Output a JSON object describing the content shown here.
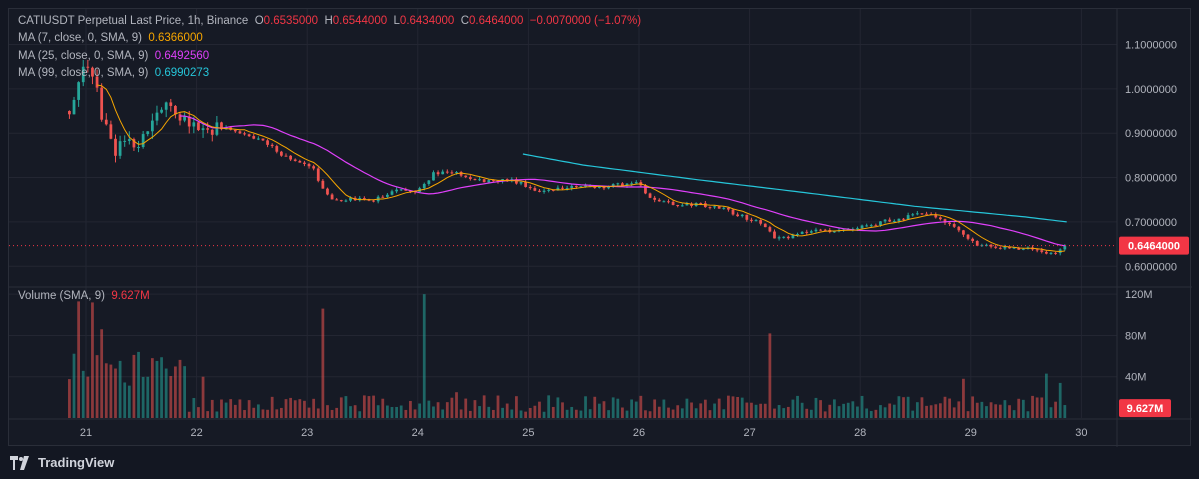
{
  "header": {
    "symbol_line": "CATIUSDT Perpetual Last Price, 1h, Binance",
    "open_label": "O",
    "open": "0.6535000",
    "high_label": "H",
    "high": "0.6544000",
    "low_label": "L",
    "low": "0.6434000",
    "close_label": "C",
    "close": "0.6464000",
    "change": "−0.0070000 (−1.07%)"
  },
  "indicators": {
    "ma7_label": "MA (7, close, 0, SMA, 9)",
    "ma7_value": "0.6366000",
    "ma25_label": "MA (25, close, 0, SMA, 9)",
    "ma25_value": "0.6492560",
    "ma99_label": "MA (99, close, 0, SMA, 9)",
    "ma99_value": "0.6990273",
    "volume_label": "Volume (SMA, 9)",
    "volume_value": "9.627M"
  },
  "colors": {
    "up": "#26a69a",
    "down": "#ef5350",
    "ma7": "#f7a600",
    "ma25": "#e040fb",
    "ma99": "#26c6da",
    "price_tag": "#f23645"
  },
  "brand": {
    "name": "TradingView"
  },
  "chart_data": {
    "type": "candlestick",
    "timeframe": "1h",
    "x_ticks": [
      "21",
      "22",
      "23",
      "24",
      "25",
      "26",
      "27",
      "28",
      "29",
      "30"
    ],
    "price_axis": {
      "ticks": [
        "1.1000000",
        "1.0000000",
        "0.9000000",
        "0.8000000",
        "0.7000000",
        "0.6000000"
      ],
      "range": [
        0.56,
        1.18
      ],
      "last_price": 0.6464,
      "last_price_label": "0.6464000"
    },
    "volume_axis": {
      "ticks": [
        "120M",
        "80M",
        "40M"
      ],
      "range_millions": [
        0,
        125
      ],
      "last_volume_label": "9.627M"
    },
    "price_keypoints_day_value": [
      [
        20.85,
        0.95
      ],
      [
        20.95,
        1.03
      ],
      [
        21.05,
        1.05
      ],
      [
        21.15,
        0.93
      ],
      [
        21.25,
        0.86
      ],
      [
        21.35,
        0.88
      ],
      [
        21.5,
        0.88
      ],
      [
        21.65,
        0.96
      ],
      [
        21.8,
        0.95
      ],
      [
        22.0,
        0.91
      ],
      [
        22.3,
        0.91
      ],
      [
        22.6,
        0.88
      ],
      [
        22.85,
        0.84
      ],
      [
        23.05,
        0.82
      ],
      [
        23.2,
        0.75
      ],
      [
        23.4,
        0.75
      ],
      [
        23.6,
        0.75
      ],
      [
        23.8,
        0.77
      ],
      [
        24.0,
        0.77
      ],
      [
        24.15,
        0.81
      ],
      [
        24.35,
        0.81
      ],
      [
        24.6,
        0.79
      ],
      [
        24.8,
        0.795
      ],
      [
        24.9,
        0.79
      ],
      [
        25.1,
        0.77
      ],
      [
        25.4,
        0.78
      ],
      [
        25.7,
        0.78
      ],
      [
        26.0,
        0.79
      ],
      [
        26.1,
        0.75
      ],
      [
        26.3,
        0.74
      ],
      [
        26.5,
        0.74
      ],
      [
        26.75,
        0.73
      ],
      [
        26.95,
        0.71
      ],
      [
        27.1,
        0.7
      ],
      [
        27.25,
        0.66
      ],
      [
        27.4,
        0.67
      ],
      [
        27.6,
        0.68
      ],
      [
        27.8,
        0.68
      ],
      [
        28.0,
        0.69
      ],
      [
        28.2,
        0.7
      ],
      [
        28.4,
        0.71
      ],
      [
        28.6,
        0.72
      ],
      [
        28.75,
        0.7
      ],
      [
        28.9,
        0.68
      ],
      [
        29.05,
        0.65
      ],
      [
        29.3,
        0.64
      ],
      [
        29.5,
        0.64
      ],
      [
        29.65,
        0.63
      ],
      [
        29.75,
        0.63
      ],
      [
        29.85,
        0.6464
      ]
    ],
    "ma99_keypoints_day_value": [
      [
        24.95,
        0.853
      ],
      [
        25.5,
        0.828
      ],
      [
        26.5,
        0.796
      ],
      [
        27.5,
        0.766
      ],
      [
        28.5,
        0.735
      ],
      [
        29.5,
        0.711
      ],
      [
        29.9,
        0.699
      ]
    ],
    "volume_spikes_day_millions": [
      [
        20.95,
        113,
        "down"
      ],
      [
        21.05,
        112,
        "down"
      ],
      [
        21.15,
        86,
        "down"
      ],
      [
        21.6,
        58,
        "down"
      ],
      [
        22.05,
        40,
        "down"
      ],
      [
        23.15,
        106,
        "down"
      ],
      [
        24.05,
        120,
        "up"
      ],
      [
        24.35,
        25,
        "down"
      ],
      [
        27.2,
        82,
        "down"
      ],
      [
        28.95,
        38,
        "down"
      ],
      [
        29.7,
        43,
        "up"
      ],
      [
        29.8,
        34,
        "up"
      ],
      [
        29.9,
        9.6,
        "down"
      ]
    ]
  }
}
